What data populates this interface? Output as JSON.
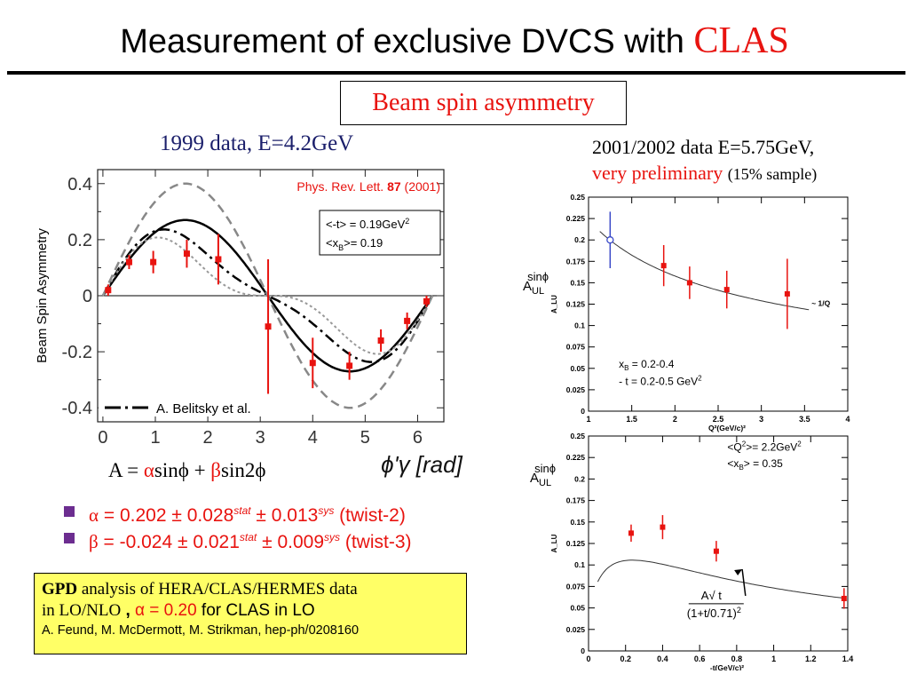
{
  "title": {
    "main": "Measurement of exclusive DVCS with",
    "accent": "CLAS"
  },
  "box_label": "Beam spin asymmetry",
  "left_subtitle": "1999 data, E=4.2GeV",
  "right_subtitle": {
    "line1": "2001/2002  data E=5.75GeV,",
    "red": "very preliminary",
    "note": "(15% sample)"
  },
  "formula": {
    "prefix": "A = ",
    "alpha": "α",
    "mid": "sinϕ + ",
    "beta": "β",
    "end": "sin2ϕ"
  },
  "bullets": [
    {
      "sym": "α",
      "text1": " =  0.202 ± 0.028",
      "sup1": "stat",
      "text2": " ± 0.013",
      "sup2": "sys",
      "text3": " (twist-2)"
    },
    {
      "sym": "β",
      "text1": " = -0.024 ± 0.021",
      "sup1": "stat",
      "text2": " ± 0.009",
      "sup2": "sys",
      "text3": " (twist-3)"
    }
  ],
  "gpd_box": {
    "bold": "GPD",
    "line1": " analysis of HERA/CLAS/HERMES data",
    "line2a": "in LO/NLO",
    "line2b": " , ",
    "line2c": "α = 0.20",
    "line2d": " for CLAS in LO",
    "line3": "A. Feund, M. McDermott, M. Strikman, hep-ph/0208160"
  },
  "colors": {
    "red": "#e8130f",
    "navy": "#1b1f6b",
    "purple": "#6c2d90",
    "yellow": "#ffff66",
    "blue": "#3848c8"
  },
  "chart_data": [
    {
      "type": "scatter",
      "ylabel": "Beam Spin Asymmetry",
      "xlabel": "ϕ'γ [rad]",
      "xlim": [
        -0.1,
        6.5
      ],
      "ylim": [
        -0.45,
        0.45
      ],
      "xticks": [
        "0",
        "1",
        "2",
        "3",
        "4",
        "5",
        "6"
      ],
      "yticks": [
        "0.4",
        "0.2",
        "0",
        "-0.2",
        "-0.4"
      ],
      "reference": {
        "prefix": "Phys. Rev. Lett. ",
        "vol": "87",
        "year": " (2001)"
      },
      "kinematics": {
        "t_pre": "<-t> = 0.19GeV",
        "t_sup": "2",
        "x_pre": "<x",
        "x_sub": "B",
        "x_post": ">= 0.19"
      },
      "legend": "A. Belitsky et al.",
      "points": [
        {
          "x": 0.1,
          "y": 0.02,
          "err": 0.02
        },
        {
          "x": 0.5,
          "y": 0.12,
          "err": 0.025
        },
        {
          "x": 0.96,
          "y": 0.12,
          "err": 0.04
        },
        {
          "x": 1.6,
          "y": 0.15,
          "err": 0.05
        },
        {
          "x": 2.2,
          "y": 0.13,
          "err": 0.09
        },
        {
          "x": 3.15,
          "y": -0.11,
          "err": 0.24
        },
        {
          "x": 4.0,
          "y": -0.24,
          "err": 0.09
        },
        {
          "x": 4.7,
          "y": -0.25,
          "err": 0.05
        },
        {
          "x": 5.3,
          "y": -0.16,
          "err": 0.04
        },
        {
          "x": 5.8,
          "y": -0.09,
          "err": 0.03
        },
        {
          "x": 6.17,
          "y": -0.02,
          "err": 0.02
        }
      ],
      "curves": [
        {
          "name": "A. Belitsky et al.",
          "a": 0.21,
          "b": 0.06,
          "style": "dashdot"
        },
        {
          "a": 0.27,
          "b": 0.0,
          "style": "solid"
        },
        {
          "a": 0.4,
          "b": 0.0,
          "style": "dashed"
        },
        {
          "a": 0.16,
          "b": 0.08,
          "style": "dotted"
        }
      ]
    },
    {
      "type": "scatter",
      "ylabel_main": "A",
      "ylabel_sub": "UL",
      "ylabel_sup": "sinϕ",
      "xlabel": "Q²(GeV/c)²",
      "yaxis_small": "A_LU",
      "xlim": [
        1,
        4
      ],
      "ylim": [
        0,
        0.25
      ],
      "xticks": [
        "1",
        "1.5",
        "2",
        "2.5",
        "3",
        "3.5",
        "4"
      ],
      "yticks": [
        "0",
        "0.025",
        "0.05",
        "0.075",
        "0.1",
        "0.125",
        "0.15",
        "0.175",
        "0.2",
        "0.225",
        "0.25"
      ],
      "curve_label": "~ 1/Q",
      "annot1": {
        "pre": "x",
        "sub": "B",
        "post": " = 0.2-0.4"
      },
      "annot2": {
        "pre": "-  t = 0.2-0.5 GeV",
        "sup": "2"
      },
      "points": [
        {
          "x": 1.25,
          "y": 0.2,
          "err": 0.033,
          "style": "open-blue"
        },
        {
          "x": 1.87,
          "y": 0.17,
          "err": 0.024
        },
        {
          "x": 2.17,
          "y": 0.15,
          "err": 0.019
        },
        {
          "x": 2.6,
          "y": 0.142,
          "err": 0.022
        },
        {
          "x": 3.3,
          "y": 0.137,
          "err": 0.041
        }
      ]
    },
    {
      "type": "scatter",
      "ylabel_main": "A",
      "ylabel_sub": "UL",
      "ylabel_sup": "sinϕ",
      "xlabel": "-t(GeV/c)²",
      "yaxis_small": "A_LU",
      "xlim": [
        0,
        1.4
      ],
      "ylim": [
        0,
        0.25
      ],
      "xticks": [
        "0",
        "0.2",
        "0.4",
        "0.6",
        "0.8",
        "1",
        "1.2",
        "1.4"
      ],
      "yticks": [
        "0",
        "0.025",
        "0.05",
        "0.075",
        "0.1",
        "0.125",
        "0.15",
        "0.175",
        "0.2",
        "0.225",
        "0.25"
      ],
      "annot1": {
        "pre": "<Q",
        "sup": "2",
        "post": ">= 2.2GeV",
        "sup2": "2"
      },
      "annot2": {
        "pre": "<x",
        "sub": "B",
        "post": "> = 0.35"
      },
      "formula_num": "A√ t",
      "formula_den_pre": "(1+t/0.71)",
      "formula_den_sup": "2",
      "points": [
        {
          "x": 0.23,
          "y": 0.137,
          "err": 0.01
        },
        {
          "x": 0.4,
          "y": 0.144,
          "err": 0.014
        },
        {
          "x": 0.69,
          "y": 0.116,
          "err": 0.012
        },
        {
          "x": 1.38,
          "y": 0.061,
          "err": 0.012
        }
      ]
    }
  ]
}
